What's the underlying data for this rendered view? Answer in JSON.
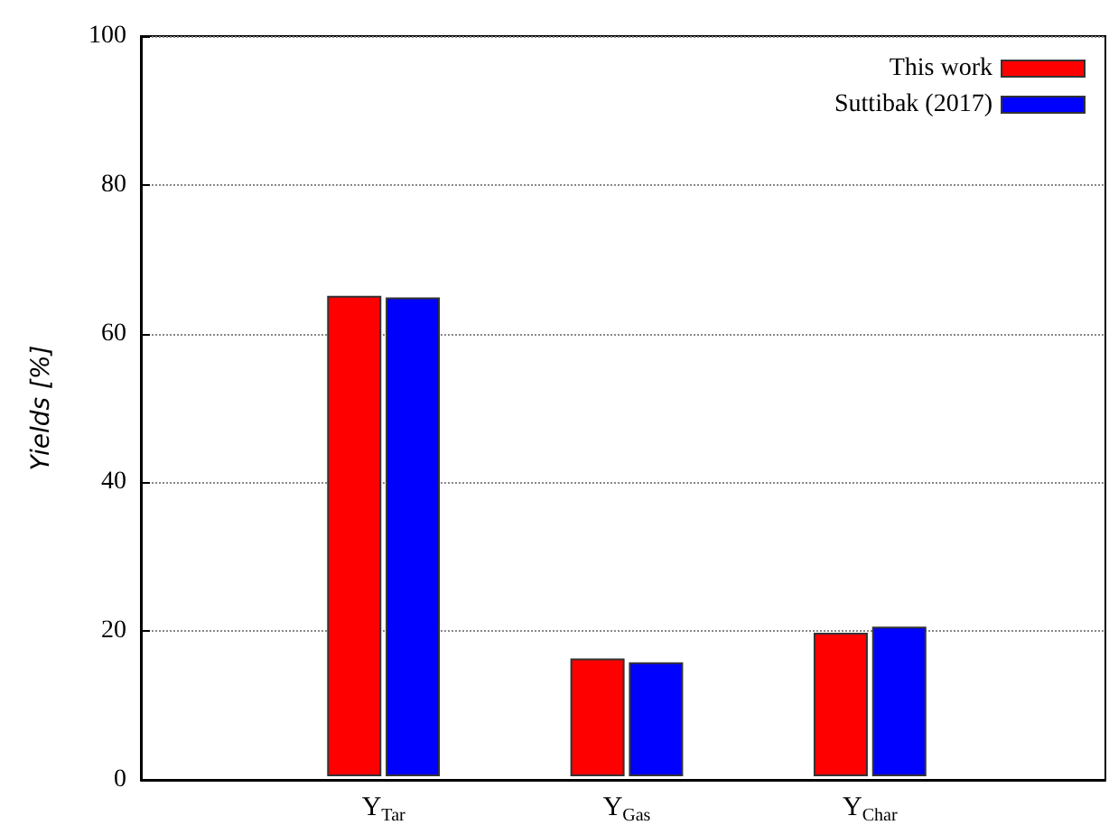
{
  "chart_data": {
    "type": "bar",
    "ylabel": "Yields [%]",
    "categories": [
      "Y$_{Tar}$",
      "Y$_{Gas}$",
      "Y$_{Char}$"
    ],
    "series": [
      {
        "name": "This work",
        "color": "#ff0000",
        "values": [
          64.9,
          15.9,
          19.4
        ]
      },
      {
        "name": "Suttibak (2017)",
        "color": "#0000ff",
        "values": [
          64.7,
          15.4,
          20.2
        ]
      }
    ],
    "ylim": [
      0,
      100
    ],
    "yticks": [
      0,
      20,
      40,
      60,
      80,
      100
    ],
    "grid": "y",
    "legend": "top right"
  }
}
